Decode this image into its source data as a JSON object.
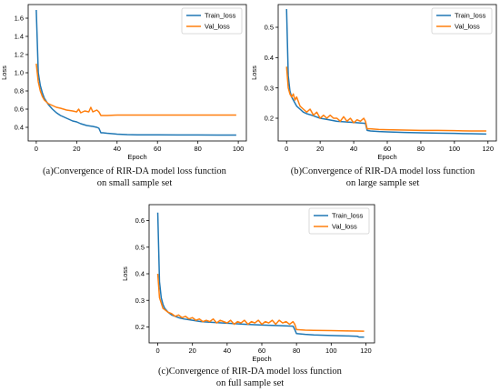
{
  "colors": {
    "train": "#1f77b4",
    "val": "#ff7f0e"
  },
  "captions": [
    {
      "line1": "(a)Convergence of RIR-DA model loss function",
      "line2": "on small sample set"
    },
    {
      "line1": "(b)Convergence of RIR-DA model loss function",
      "line2": "on large sample set"
    },
    {
      "line1": "(c)Convergence of RIR-DA model loss function",
      "line2": "on full sample set"
    }
  ],
  "chart_data": [
    {
      "type": "line",
      "title": "",
      "xlabel": "Epoch",
      "ylabel": "Loss",
      "xlim": [
        -4,
        104
      ],
      "ylim": [
        0.25,
        1.75
      ],
      "xticks": [
        0,
        20,
        40,
        60,
        80,
        100
      ],
      "yticks": [
        0.4,
        0.6,
        0.8,
        1.0,
        1.2,
        1.4,
        1.6
      ],
      "ytick_labels": [
        "0.4",
        "0.6",
        "0.8",
        "1.0",
        "1.2",
        "1.4",
        "1.6"
      ],
      "legend": "top-right",
      "series": [
        {
          "name": "Train_loss",
          "x": [
            0,
            1,
            2,
            3,
            4,
            6,
            8,
            10,
            12,
            15,
            18,
            20,
            22,
            25,
            28,
            30,
            31,
            32,
            33,
            35,
            40,
            45,
            50,
            60,
            70,
            80,
            90,
            99
          ],
          "y": [
            1.69,
            1.0,
            0.86,
            0.78,
            0.72,
            0.65,
            0.6,
            0.56,
            0.53,
            0.5,
            0.47,
            0.46,
            0.44,
            0.42,
            0.41,
            0.4,
            0.39,
            0.34,
            0.34,
            0.335,
            0.325,
            0.32,
            0.318,
            0.317,
            0.316,
            0.316,
            0.315,
            0.315
          ]
        },
        {
          "name": "Val_loss",
          "x": [
            0,
            1,
            2,
            3,
            4,
            6,
            8,
            10,
            12,
            15,
            18,
            20,
            21,
            22,
            24,
            26,
            27,
            28,
            30,
            31,
            32,
            33,
            35,
            40,
            50,
            60,
            70,
            80,
            90,
            99
          ],
          "y": [
            1.1,
            0.9,
            0.8,
            0.74,
            0.7,
            0.66,
            0.64,
            0.62,
            0.61,
            0.59,
            0.58,
            0.57,
            0.6,
            0.56,
            0.58,
            0.57,
            0.62,
            0.57,
            0.59,
            0.57,
            0.53,
            0.53,
            0.53,
            0.535,
            0.535,
            0.535,
            0.535,
            0.535,
            0.535,
            0.535
          ]
        }
      ]
    },
    {
      "type": "line",
      "title": "",
      "xlabel": "Epoch",
      "ylabel": "Loss",
      "xlim": [
        -5,
        125
      ],
      "ylim": [
        0.125,
        0.575
      ],
      "xticks": [
        0,
        20,
        40,
        60,
        80,
        100,
        120
      ],
      "yticks": [
        0.2,
        0.3,
        0.4,
        0.5
      ],
      "ytick_labels": [
        "0.2",
        "0.3",
        "0.4",
        "0.5"
      ],
      "legend": "top-right",
      "series": [
        {
          "name": "Train_loss",
          "x": [
            0,
            1,
            2,
            3,
            4,
            6,
            8,
            10,
            12,
            15,
            20,
            25,
            30,
            35,
            40,
            45,
            47,
            48,
            50,
            55,
            60,
            70,
            80,
            90,
            100,
            110,
            119
          ],
          "y": [
            0.56,
            0.34,
            0.29,
            0.27,
            0.26,
            0.24,
            0.23,
            0.22,
            0.215,
            0.21,
            0.2,
            0.195,
            0.19,
            0.188,
            0.186,
            0.184,
            0.183,
            0.16,
            0.158,
            0.156,
            0.155,
            0.153,
            0.152,
            0.151,
            0.15,
            0.149,
            0.148
          ]
        },
        {
          "name": "Val_loss",
          "x": [
            0,
            1,
            2,
            3,
            4,
            5,
            6,
            8,
            10,
            12,
            14,
            16,
            18,
            20,
            22,
            24,
            26,
            28,
            30,
            32,
            34,
            36,
            38,
            40,
            42,
            44,
            46,
            47,
            48,
            50,
            55,
            60,
            70,
            80,
            90,
            100,
            110,
            119
          ],
          "y": [
            0.37,
            0.3,
            0.28,
            0.27,
            0.28,
            0.26,
            0.27,
            0.24,
            0.23,
            0.22,
            0.23,
            0.21,
            0.22,
            0.2,
            0.21,
            0.2,
            0.21,
            0.2,
            0.2,
            0.19,
            0.205,
            0.19,
            0.2,
            0.185,
            0.195,
            0.19,
            0.2,
            0.19,
            0.165,
            0.165,
            0.163,
            0.162,
            0.161,
            0.16,
            0.16,
            0.159,
            0.158,
            0.158
          ]
        }
      ]
    },
    {
      "type": "line",
      "title": "",
      "xlabel": "Epoch",
      "ylabel": "Loss",
      "xlim": [
        -5,
        125
      ],
      "ylim": [
        0.14,
        0.66
      ],
      "xticks": [
        0,
        20,
        40,
        60,
        80,
        100,
        120
      ],
      "yticks": [
        0.2,
        0.3,
        0.4,
        0.5,
        0.6
      ],
      "ytick_labels": [
        "0.2",
        "0.3",
        "0.4",
        "0.5",
        "0.6"
      ],
      "legend": "top-right",
      "series": [
        {
          "name": "Train_loss",
          "x": [
            0,
            1,
            2,
            3,
            4,
            6,
            8,
            10,
            12,
            15,
            20,
            25,
            30,
            40,
            50,
            60,
            70,
            78,
            79,
            80,
            85,
            90,
            100,
            110,
            115,
            116,
            119
          ],
          "y": [
            0.63,
            0.37,
            0.31,
            0.285,
            0.27,
            0.255,
            0.245,
            0.24,
            0.235,
            0.23,
            0.225,
            0.22,
            0.218,
            0.214,
            0.21,
            0.207,
            0.205,
            0.203,
            0.19,
            0.175,
            0.172,
            0.17,
            0.168,
            0.166,
            0.165,
            0.162,
            0.162
          ]
        },
        {
          "name": "Val_loss",
          "x": [
            0,
            1,
            2,
            3,
            4,
            5,
            6,
            8,
            10,
            12,
            14,
            16,
            18,
            20,
            22,
            24,
            26,
            28,
            30,
            32,
            34,
            36,
            38,
            40,
            42,
            44,
            46,
            48,
            50,
            52,
            54,
            56,
            58,
            60,
            62,
            64,
            66,
            68,
            70,
            72,
            74,
            76,
            78,
            79,
            80,
            85,
            90,
            100,
            110,
            119
          ],
          "y": [
            0.4,
            0.31,
            0.29,
            0.27,
            0.265,
            0.26,
            0.255,
            0.25,
            0.24,
            0.245,
            0.235,
            0.24,
            0.23,
            0.235,
            0.225,
            0.23,
            0.22,
            0.225,
            0.22,
            0.23,
            0.215,
            0.225,
            0.22,
            0.215,
            0.225,
            0.21,
            0.22,
            0.215,
            0.225,
            0.21,
            0.22,
            0.215,
            0.225,
            0.21,
            0.22,
            0.215,
            0.225,
            0.21,
            0.225,
            0.215,
            0.22,
            0.21,
            0.22,
            0.21,
            0.19,
            0.188,
            0.187,
            0.186,
            0.185,
            0.184
          ]
        }
      ]
    }
  ]
}
